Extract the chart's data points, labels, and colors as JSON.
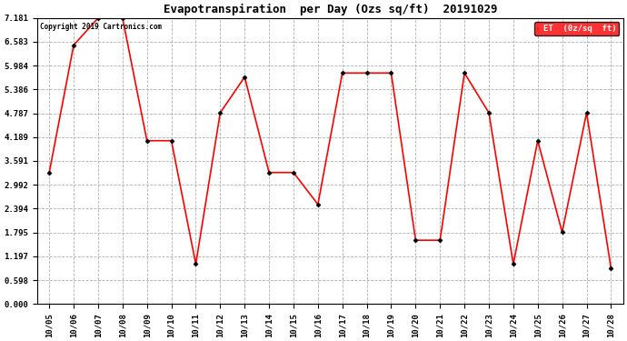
{
  "title": "Evapotranspiration  per Day (Ozs sq/ft)  20191029",
  "copyright": "Copyright 2019 Cartronics.com",
  "legend_label": "ET  (0z/sq  ft)",
  "dates": [
    "10/05",
    "10/06",
    "10/07",
    "10/08",
    "10/09",
    "10/10",
    "10/11",
    "10/12",
    "10/13",
    "10/14",
    "10/15",
    "10/16",
    "10/17",
    "10/18",
    "10/19",
    "10/20",
    "10/21",
    "10/22",
    "10/23",
    "10/24",
    "10/25",
    "10/26",
    "10/27",
    "10/28"
  ],
  "values": [
    3.3,
    6.5,
    7.18,
    7.18,
    4.1,
    4.1,
    1.0,
    4.8,
    5.7,
    3.3,
    3.3,
    2.5,
    5.8,
    5.8,
    5.8,
    1.6,
    1.6,
    5.8,
    4.8,
    1.0,
    4.1,
    1.8,
    4.8,
    0.9
  ],
  "yticks": [
    0.0,
    0.598,
    1.197,
    1.795,
    2.394,
    2.992,
    3.591,
    4.189,
    4.787,
    5.386,
    5.984,
    6.583,
    7.181
  ],
  "line_color": "red",
  "marker_color": "black",
  "grid_color": "#b0b0b0",
  "background_color": "white",
  "title_fontsize": 9,
  "legend_bg": "red",
  "legend_fg": "white",
  "figwidth": 6.9,
  "figheight": 3.75,
  "dpi": 100
}
